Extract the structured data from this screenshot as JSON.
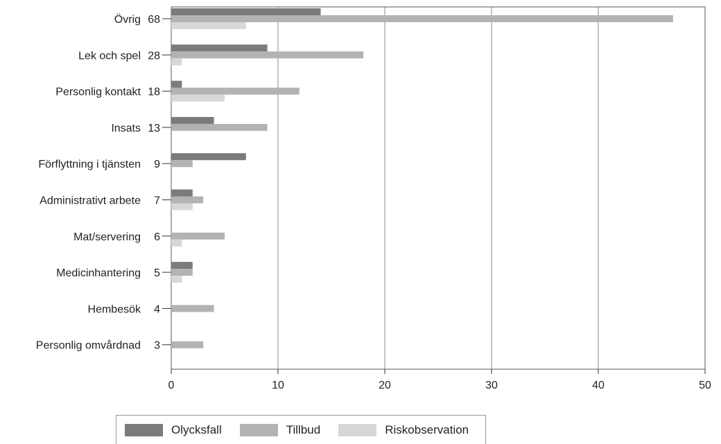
{
  "chart_data": {
    "type": "bar",
    "orientation": "horizontal",
    "categories": [
      {
        "name": "Övrig",
        "total": "68"
      },
      {
        "name": "Lek och spel",
        "total": "28"
      },
      {
        "name": "Personlig kontakt",
        "total": "18"
      },
      {
        "name": "Insats",
        "total": "13"
      },
      {
        "name": "Förflyttning i tjänsten",
        "total": "9"
      },
      {
        "name": "Administrativt arbete",
        "total": "7"
      },
      {
        "name": "Mat/servering",
        "total": "6"
      },
      {
        "name": "Medicinhantering",
        "total": "5"
      },
      {
        "name": "Hembesök",
        "total": "4"
      },
      {
        "name": "Personlig omvårdnad",
        "total": "3"
      }
    ],
    "series": [
      {
        "name": "Olycksfall",
        "color": "#7b7b7b",
        "values": [
          14,
          9,
          1,
          4,
          7,
          2,
          0,
          2,
          0,
          0
        ]
      },
      {
        "name": "Tillbud",
        "color": "#b3b3b3",
        "values": [
          47,
          18,
          12,
          9,
          2,
          3,
          5,
          2,
          4,
          3
        ]
      },
      {
        "name": "Riskobservation",
        "color": "#d7d7d7",
        "values": [
          7,
          1,
          5,
          0,
          0,
          2,
          1,
          1,
          0,
          0
        ]
      }
    ],
    "x_ticks": [
      "0",
      "10",
      "20",
      "30",
      "40",
      "50"
    ],
    "xlim": [
      0,
      50
    ],
    "grid": true,
    "legend_position": "bottom"
  }
}
